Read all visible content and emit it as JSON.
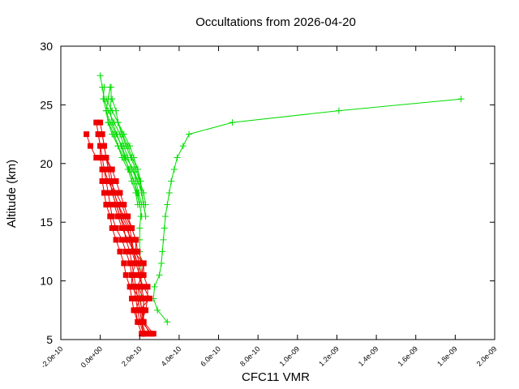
{
  "chart_data": {
    "type": "scatter",
    "title": "Occultations from 2026-04-20",
    "xlabel": "CFC11 VMR",
    "ylabel": "Altitude (km)",
    "xlim": [
      -2e-10,
      2e-09
    ],
    "ylim": [
      5,
      30
    ],
    "xticks": [
      -2e-10,
      0.0,
      2e-10,
      4e-10,
      6e-10,
      8e-10,
      1e-09,
      1.2e-09,
      1.4e-09,
      1.6e-09,
      1.8e-09,
      2e-09
    ],
    "xtick_labels": [
      "-2.0e-10",
      "0.0e+00",
      "2.0e-10",
      "4.0e-10",
      "6.0e-10",
      "8.0e-10",
      "1.0e-09",
      "1.2e-09",
      "1.4e-09",
      "1.6e-09",
      "1.8e-09",
      "2.0e-09"
    ],
    "yticks": [
      5,
      10,
      15,
      20,
      25,
      30
    ],
    "ytick_labels": [
      "5",
      "10",
      "15",
      "20",
      "25",
      "30"
    ],
    "grid": false,
    "legend": "none",
    "colors": {
      "green": "#00dd00",
      "red": "#ee0000"
    },
    "series": [
      {
        "color": "green",
        "marker": "plus",
        "points": [
          [
            3.4e-10,
            6.5
          ],
          [
            2.9e-10,
            7.5
          ],
          [
            2.7e-10,
            8.5
          ],
          [
            2.75e-10,
            9.5
          ],
          [
            3e-10,
            10.5
          ],
          [
            3.1e-10,
            11.5
          ],
          [
            3.15e-10,
            12.5
          ],
          [
            3.2e-10,
            13.5
          ],
          [
            3.25e-10,
            14.5
          ],
          [
            3.3e-10,
            15.5
          ],
          [
            3.4e-10,
            16.5
          ],
          [
            3.5e-10,
            17.5
          ],
          [
            3.6e-10,
            18.5
          ],
          [
            3.75e-10,
            19.5
          ],
          [
            3.9e-10,
            20.5
          ],
          [
            4.2e-10,
            21.5
          ],
          [
            4.5e-10,
            22.5
          ],
          [
            6.7e-10,
            23.5
          ],
          [
            1.21e-09,
            24.5
          ],
          [
            1.83e-09,
            25.5
          ]
        ]
      },
      {
        "color": "green",
        "marker": "plus",
        "points": [
          [
            2.3e-10,
            15.5
          ],
          [
            2.2e-10,
            16.5
          ],
          [
            2.1e-10,
            17.5
          ],
          [
            1.9e-10,
            18.5
          ],
          [
            1.6e-10,
            19.5
          ],
          [
            1.4e-10,
            20.5
          ],
          [
            1.2e-10,
            21.5
          ],
          [
            1e-10,
            22.5
          ],
          [
            7e-11,
            23.5
          ],
          [
            4e-11,
            24.5
          ],
          [
            2e-11,
            25.5
          ],
          [
            1e-11,
            26.5
          ],
          [
            0.0,
            27.5
          ]
        ]
      },
      {
        "color": "green",
        "marker": "plus",
        "points": [
          [
            2.2e-10,
            16.5
          ],
          [
            2.1e-10,
            17.5
          ],
          [
            1.9e-10,
            18.5
          ],
          [
            1.7e-10,
            19.5
          ],
          [
            1.3e-10,
            20.5
          ],
          [
            1.1e-10,
            21.5
          ],
          [
            8e-11,
            22.5
          ],
          [
            5e-11,
            23.5
          ],
          [
            3e-11,
            24.5
          ],
          [
            1.5e-11,
            25.5
          ],
          [
            2e-11,
            26.5
          ]
        ]
      },
      {
        "color": "green",
        "marker": "plus",
        "points": [
          [
            2e-10,
            16.5
          ],
          [
            1.9e-10,
            17.5
          ],
          [
            1.7e-10,
            18.5
          ],
          [
            1.5e-10,
            19.5
          ],
          [
            1.2e-10,
            20.5
          ],
          [
            9e-11,
            21.5
          ],
          [
            7e-11,
            22.5
          ],
          [
            4e-11,
            23.5
          ],
          [
            3e-11,
            24.5
          ],
          [
            4e-11,
            25.5
          ],
          [
            5e-11,
            26.5
          ]
        ]
      },
      {
        "color": "green",
        "marker": "plus",
        "points": [
          [
            2.1e-10,
            15.5
          ],
          [
            2e-10,
            16.5
          ],
          [
            1.85e-10,
            17.5
          ],
          [
            1.7e-10,
            18.5
          ],
          [
            1.45e-10,
            19.5
          ],
          [
            1.25e-10,
            20.5
          ],
          [
            1.05e-10,
            21.5
          ],
          [
            8.5e-11,
            22.5
          ],
          [
            6e-11,
            23.5
          ],
          [
            5e-11,
            24.5
          ],
          [
            5.5e-11,
            25.5
          ],
          [
            5.5e-11,
            26.5
          ]
        ]
      },
      {
        "color": "green",
        "marker": "plus",
        "points": [
          [
            2.2e-10,
            16.5
          ],
          [
            2.1e-10,
            17.5
          ],
          [
            2e-10,
            18.5
          ],
          [
            1.8e-10,
            19.5
          ],
          [
            1.55e-10,
            20.5
          ],
          [
            1.3e-10,
            21.5
          ],
          [
            1.1e-10,
            22.5
          ],
          [
            9e-11,
            23.5
          ],
          [
            6e-11,
            24.5
          ],
          [
            3e-11,
            25.5
          ]
        ]
      },
      {
        "color": "green",
        "marker": "plus",
        "points": [
          [
            2.3e-10,
            16.5
          ],
          [
            2.2e-10,
            17.5
          ],
          [
            2e-10,
            18.5
          ],
          [
            1.9e-10,
            19.5
          ],
          [
            1.7e-10,
            20.5
          ],
          [
            1.5e-10,
            21.5
          ],
          [
            1.2e-10,
            22.5
          ],
          [
            9e-11,
            23.5
          ],
          [
            8e-11,
            24.5
          ],
          [
            6e-11,
            25.5
          ]
        ]
      },
      {
        "color": "green",
        "marker": "plus",
        "points": [
          [
            1.9e-10,
            16.5
          ],
          [
            1.8e-10,
            17.5
          ],
          [
            1.6e-10,
            18.5
          ],
          [
            1.4e-10,
            19.5
          ],
          [
            1.1e-10,
            20.5
          ],
          [
            9e-11,
            21.5
          ],
          [
            6e-11,
            22.5
          ],
          [
            4e-11,
            23.5
          ],
          [
            3e-11,
            24.5
          ]
        ]
      },
      {
        "color": "green",
        "marker": "plus",
        "points": [
          [
            2.3e-10,
            15.5
          ],
          [
            2.2e-10,
            16.5
          ],
          [
            2.1e-10,
            17.5
          ],
          [
            2.05e-10,
            18.5
          ],
          [
            1.9e-10,
            19.5
          ],
          [
            1.6e-10,
            20.5
          ],
          [
            1.4e-10,
            21.5
          ],
          [
            1.1e-10,
            22.5
          ],
          [
            9e-11,
            23.5
          ]
        ]
      },
      {
        "color": "green",
        "marker": "plus",
        "points": [
          [
            2.1e-10,
            16.5
          ],
          [
            1.95e-10,
            17.5
          ],
          [
            1.8e-10,
            18.5
          ],
          [
            1.7e-10,
            19.5
          ]
        ]
      },
      {
        "color": "green",
        "marker": "plus",
        "points": [
          [
            2.2e-10,
            5.5
          ],
          [
            2.1e-10,
            6.5
          ],
          [
            2.1e-10,
            7.5
          ],
          [
            2.05e-10,
            8.5
          ],
          [
            2.1e-10,
            9.5
          ],
          [
            2.1e-10,
            10.5
          ],
          [
            2.05e-10,
            11.5
          ],
          [
            2e-10,
            12.5
          ],
          [
            2e-10,
            13.5
          ],
          [
            2e-10,
            14.5
          ],
          [
            2.05e-10,
            15.5
          ]
        ]
      },
      {
        "color": "red",
        "marker": "square",
        "points": [
          [
            -7e-11,
            22.5
          ],
          [
            -5e-11,
            21.5
          ],
          [
            -2e-11,
            20.5
          ]
        ]
      },
      {
        "color": "red",
        "marker": "square",
        "points": [
          [
            -2e-11,
            23.5
          ],
          [
            -1e-11,
            22.5
          ],
          [
            0.0,
            21.5
          ],
          [
            0.0,
            20.5
          ],
          [
            1e-11,
            19.5
          ],
          [
            1e-11,
            18.5
          ],
          [
            2e-11,
            17.5
          ],
          [
            3e-11,
            16.5
          ],
          [
            5e-11,
            15.5
          ],
          [
            6e-11,
            14.5
          ],
          [
            8e-11,
            13.5
          ],
          [
            1e-10,
            12.5
          ],
          [
            1.2e-10,
            11.5
          ],
          [
            1.3e-10,
            10.5
          ],
          [
            1.5e-10,
            9.5
          ],
          [
            1.6e-10,
            8.5
          ],
          [
            1.7e-10,
            7.5
          ],
          [
            1.9e-10,
            6.5
          ],
          [
            2.1e-10,
            5.5
          ]
        ]
      },
      {
        "color": "red",
        "marker": "square",
        "points": [
          [
            0.0,
            23.5
          ],
          [
            1e-11,
            22.5
          ],
          [
            2e-11,
            21.5
          ],
          [
            3e-11,
            20.5
          ],
          [
            4e-11,
            19.5
          ],
          [
            5e-11,
            18.5
          ],
          [
            6e-11,
            17.5
          ],
          [
            8e-11,
            16.5
          ],
          [
            1e-10,
            15.5
          ],
          [
            1.2e-10,
            14.5
          ],
          [
            1.3e-10,
            13.5
          ],
          [
            1.5e-10,
            12.5
          ],
          [
            1.6e-10,
            11.5
          ],
          [
            1.7e-10,
            10.5
          ],
          [
            1.8e-10,
            9.5
          ],
          [
            1.9e-10,
            8.5
          ],
          [
            2e-10,
            7.5
          ],
          [
            2.1e-10,
            6.5
          ],
          [
            2.3e-10,
            5.5
          ]
        ]
      },
      {
        "color": "red",
        "marker": "square",
        "points": [
          [
            -1e-11,
            22.5
          ],
          [
            0.0,
            21.5
          ],
          [
            1e-11,
            20.5
          ],
          [
            2e-11,
            19.5
          ],
          [
            3e-11,
            18.5
          ],
          [
            4e-11,
            17.5
          ],
          [
            5e-11,
            16.5
          ],
          [
            6e-11,
            15.5
          ],
          [
            8e-11,
            14.5
          ],
          [
            1.1e-10,
            13.5
          ],
          [
            1.3e-10,
            12.5
          ],
          [
            1.5e-10,
            11.5
          ],
          [
            1.6e-10,
            10.5
          ],
          [
            1.7e-10,
            9.5
          ],
          [
            1.8e-10,
            8.5
          ],
          [
            1.9e-10,
            7.5
          ],
          [
            2e-10,
            6.5
          ],
          [
            2.2e-10,
            5.5
          ]
        ]
      },
      {
        "color": "red",
        "marker": "square",
        "points": [
          [
            1e-11,
            22.5
          ],
          [
            2e-11,
            21.5
          ],
          [
            3e-11,
            20.5
          ],
          [
            5e-11,
            19.5
          ],
          [
            6e-11,
            18.5
          ],
          [
            7e-11,
            17.5
          ],
          [
            9e-11,
            16.5
          ],
          [
            1.1e-10,
            15.5
          ],
          [
            1.4e-10,
            14.5
          ],
          [
            1.5e-10,
            13.5
          ],
          [
            1.7e-10,
            12.5
          ],
          [
            1.8e-10,
            11.5
          ],
          [
            2e-10,
            10.5
          ],
          [
            2.1e-10,
            9.5
          ],
          [
            2.2e-10,
            8.5
          ],
          [
            2.2e-10,
            7.5
          ],
          [
            2.2e-10,
            6.5
          ],
          [
            2.5e-10,
            5.5
          ]
        ]
      },
      {
        "color": "red",
        "marker": "square",
        "points": [
          [
            3e-11,
            20.5
          ],
          [
            6e-11,
            19.5
          ],
          [
            8e-11,
            18.5
          ],
          [
            1e-10,
            17.5
          ],
          [
            1.2e-10,
            16.5
          ],
          [
            1.4e-10,
            15.5
          ],
          [
            1.6e-10,
            14.5
          ],
          [
            1.8e-10,
            13.5
          ],
          [
            1.9e-10,
            12.5
          ],
          [
            2.2e-10,
            11.5
          ],
          [
            2.2e-10,
            10.5
          ],
          [
            2.4e-10,
            9.5
          ],
          [
            2.4e-10,
            8.5
          ],
          [
            2.3e-10,
            7.5
          ],
          [
            2.1e-10,
            6.5
          ],
          [
            2.6e-10,
            5.5
          ]
        ]
      },
      {
        "color": "red",
        "marker": "square",
        "points": [
          [
            2e-11,
            19.5
          ],
          [
            4e-11,
            18.5
          ],
          [
            7e-11,
            17.5
          ],
          [
            9e-11,
            16.5
          ],
          [
            1.2e-10,
            15.5
          ],
          [
            1.5e-10,
            14.5
          ],
          [
            1.6e-10,
            13.5
          ],
          [
            1.7e-10,
            12.5
          ],
          [
            1.9e-10,
            11.5
          ],
          [
            2.1e-10,
            10.5
          ],
          [
            1.9e-10,
            9.5
          ],
          [
            2e-10,
            8.5
          ],
          [
            2.1e-10,
            7.5
          ],
          [
            2.2e-10,
            6.5
          ],
          [
            2.7e-10,
            5.5
          ]
        ]
      },
      {
        "color": "red",
        "marker": "square",
        "points": [
          [
            5e-11,
            18.5
          ],
          [
            8e-11,
            17.5
          ],
          [
            1.1e-10,
            16.5
          ],
          [
            1.3e-10,
            15.5
          ],
          [
            1.6e-10,
            14.5
          ],
          [
            1.8e-10,
            13.5
          ],
          [
            1.8e-10,
            12.5
          ],
          [
            2e-10,
            11.5
          ],
          [
            1.9e-10,
            10.5
          ],
          [
            2.2e-10,
            9.5
          ],
          [
            2.5e-10,
            8.5
          ],
          [
            2e-10,
            7.5
          ],
          [
            2.2e-10,
            5.5
          ]
        ]
      },
      {
        "color": "red",
        "marker": "square",
        "points": [
          [
            6e-11,
            17.5
          ],
          [
            8e-11,
            16.5
          ],
          [
            1e-10,
            15.5
          ],
          [
            1.3e-10,
            14.5
          ],
          [
            1.6e-10,
            13.5
          ],
          [
            1.6e-10,
            12.5
          ],
          [
            1.8e-10,
            11.5
          ],
          [
            1.6e-10,
            10.5
          ],
          [
            1.6e-10,
            9.5
          ],
          [
            2e-10,
            8.5
          ],
          [
            1.8e-10,
            7.5
          ],
          [
            1.9e-10,
            6.5
          ]
        ]
      },
      {
        "color": "red",
        "marker": "square",
        "points": [
          [
            7e-11,
            16.5
          ],
          [
            9e-11,
            15.5
          ],
          [
            1.1e-10,
            14.5
          ],
          [
            1.4e-10,
            13.5
          ],
          [
            1.7e-10,
            12.5
          ],
          [
            2.2e-10,
            11.5
          ],
          [
            2.1e-10,
            10.5
          ],
          [
            1.9e-10,
            9.5
          ],
          [
            2.2e-10,
            8.5
          ],
          [
            2.2e-10,
            7.5
          ],
          [
            2.1e-10,
            6.5
          ]
        ]
      }
    ]
  }
}
